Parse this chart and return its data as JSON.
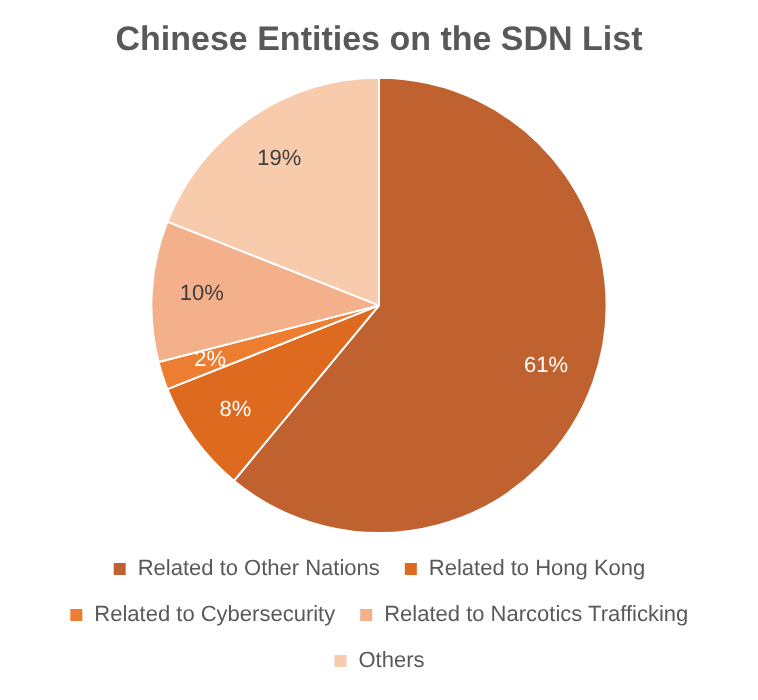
{
  "chart_data": {
    "type": "pie",
    "title": "Chinese Entities on the SDN List",
    "categories": [
      "Related to Other Nations",
      "Related to Hong Kong",
      "Related to Cybersecurity",
      "Related to Narcotics Trafficking",
      "Others"
    ],
    "values": [
      61,
      8,
      2,
      10,
      19
    ],
    "value_labels": [
      "61%",
      "8%",
      "2%",
      "10%",
      "19%"
    ],
    "colors": [
      "#c0622f",
      "#dd6a1f",
      "#ed7d31",
      "#f4b08a",
      "#f8cbad"
    ],
    "legend": "bottom"
  }
}
